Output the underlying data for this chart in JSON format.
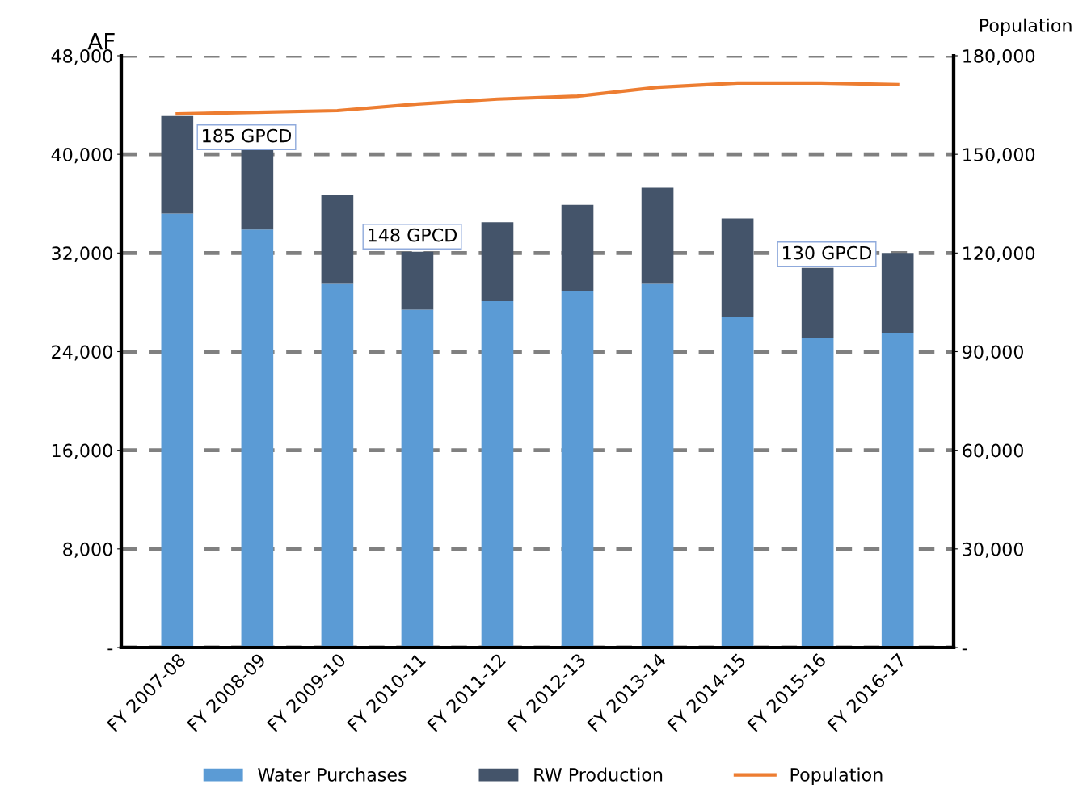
{
  "chart_data": {
    "type": "bar",
    "stacked": true,
    "ylabel": "AF",
    "y2label": "Population",
    "categories": [
      "FY 2007-08",
      "FY 2008-09",
      "FY 2009-10",
      "FY 2010-11",
      "FY 2011-12",
      "FY 2012-13",
      "FY 2013-14",
      "FY 2014-15",
      "FY 2015-16",
      "FY 2016-17"
    ],
    "series": [
      {
        "name": "Water Purchases",
        "color": "#5b9bd5",
        "values": [
          35200,
          33900,
          29500,
          27400,
          28100,
          28900,
          29500,
          26800,
          25100,
          25500
        ]
      },
      {
        "name": "RW Production",
        "color": "#44546a",
        "values": [
          7900,
          6500,
          7200,
          4700,
          6400,
          7000,
          7800,
          8000,
          5700,
          6500
        ]
      },
      {
        "name": "Population",
        "type": "line",
        "axis": "y2",
        "color": "#ed7d31",
        "values": [
          162300,
          162800,
          163300,
          165300,
          166800,
          167700,
          170400,
          171700,
          171700,
          171200
        ]
      }
    ],
    "ylim": [
      0,
      48000
    ],
    "yticks": [
      {
        "value": 0,
        "label": "-"
      },
      {
        "value": 8000,
        "label": "8,000"
      },
      {
        "value": 16000,
        "label": "16,000"
      },
      {
        "value": 24000,
        "label": "24,000"
      },
      {
        "value": 32000,
        "label": "32,000"
      },
      {
        "value": 40000,
        "label": "40,000"
      },
      {
        "value": 48000,
        "label": "48,000"
      }
    ],
    "y2lim": [
      0,
      180000
    ],
    "y2ticks": [
      {
        "value": 0,
        "label": "-"
      },
      {
        "value": 30000,
        "label": "30,000"
      },
      {
        "value": 60000,
        "label": "60,000"
      },
      {
        "value": 90000,
        "label": "90,000"
      },
      {
        "value": 120000,
        "label": "120,000"
      },
      {
        "value": 150000,
        "label": "150,000"
      },
      {
        "value": 180000,
        "label": "180,000"
      }
    ],
    "grid": "y",
    "legend": "bottom",
    "marker": "none",
    "line_style": "solid",
    "annotations": [
      "185 GPCD",
      "148 GPCD",
      "130 GPCD"
    ]
  }
}
